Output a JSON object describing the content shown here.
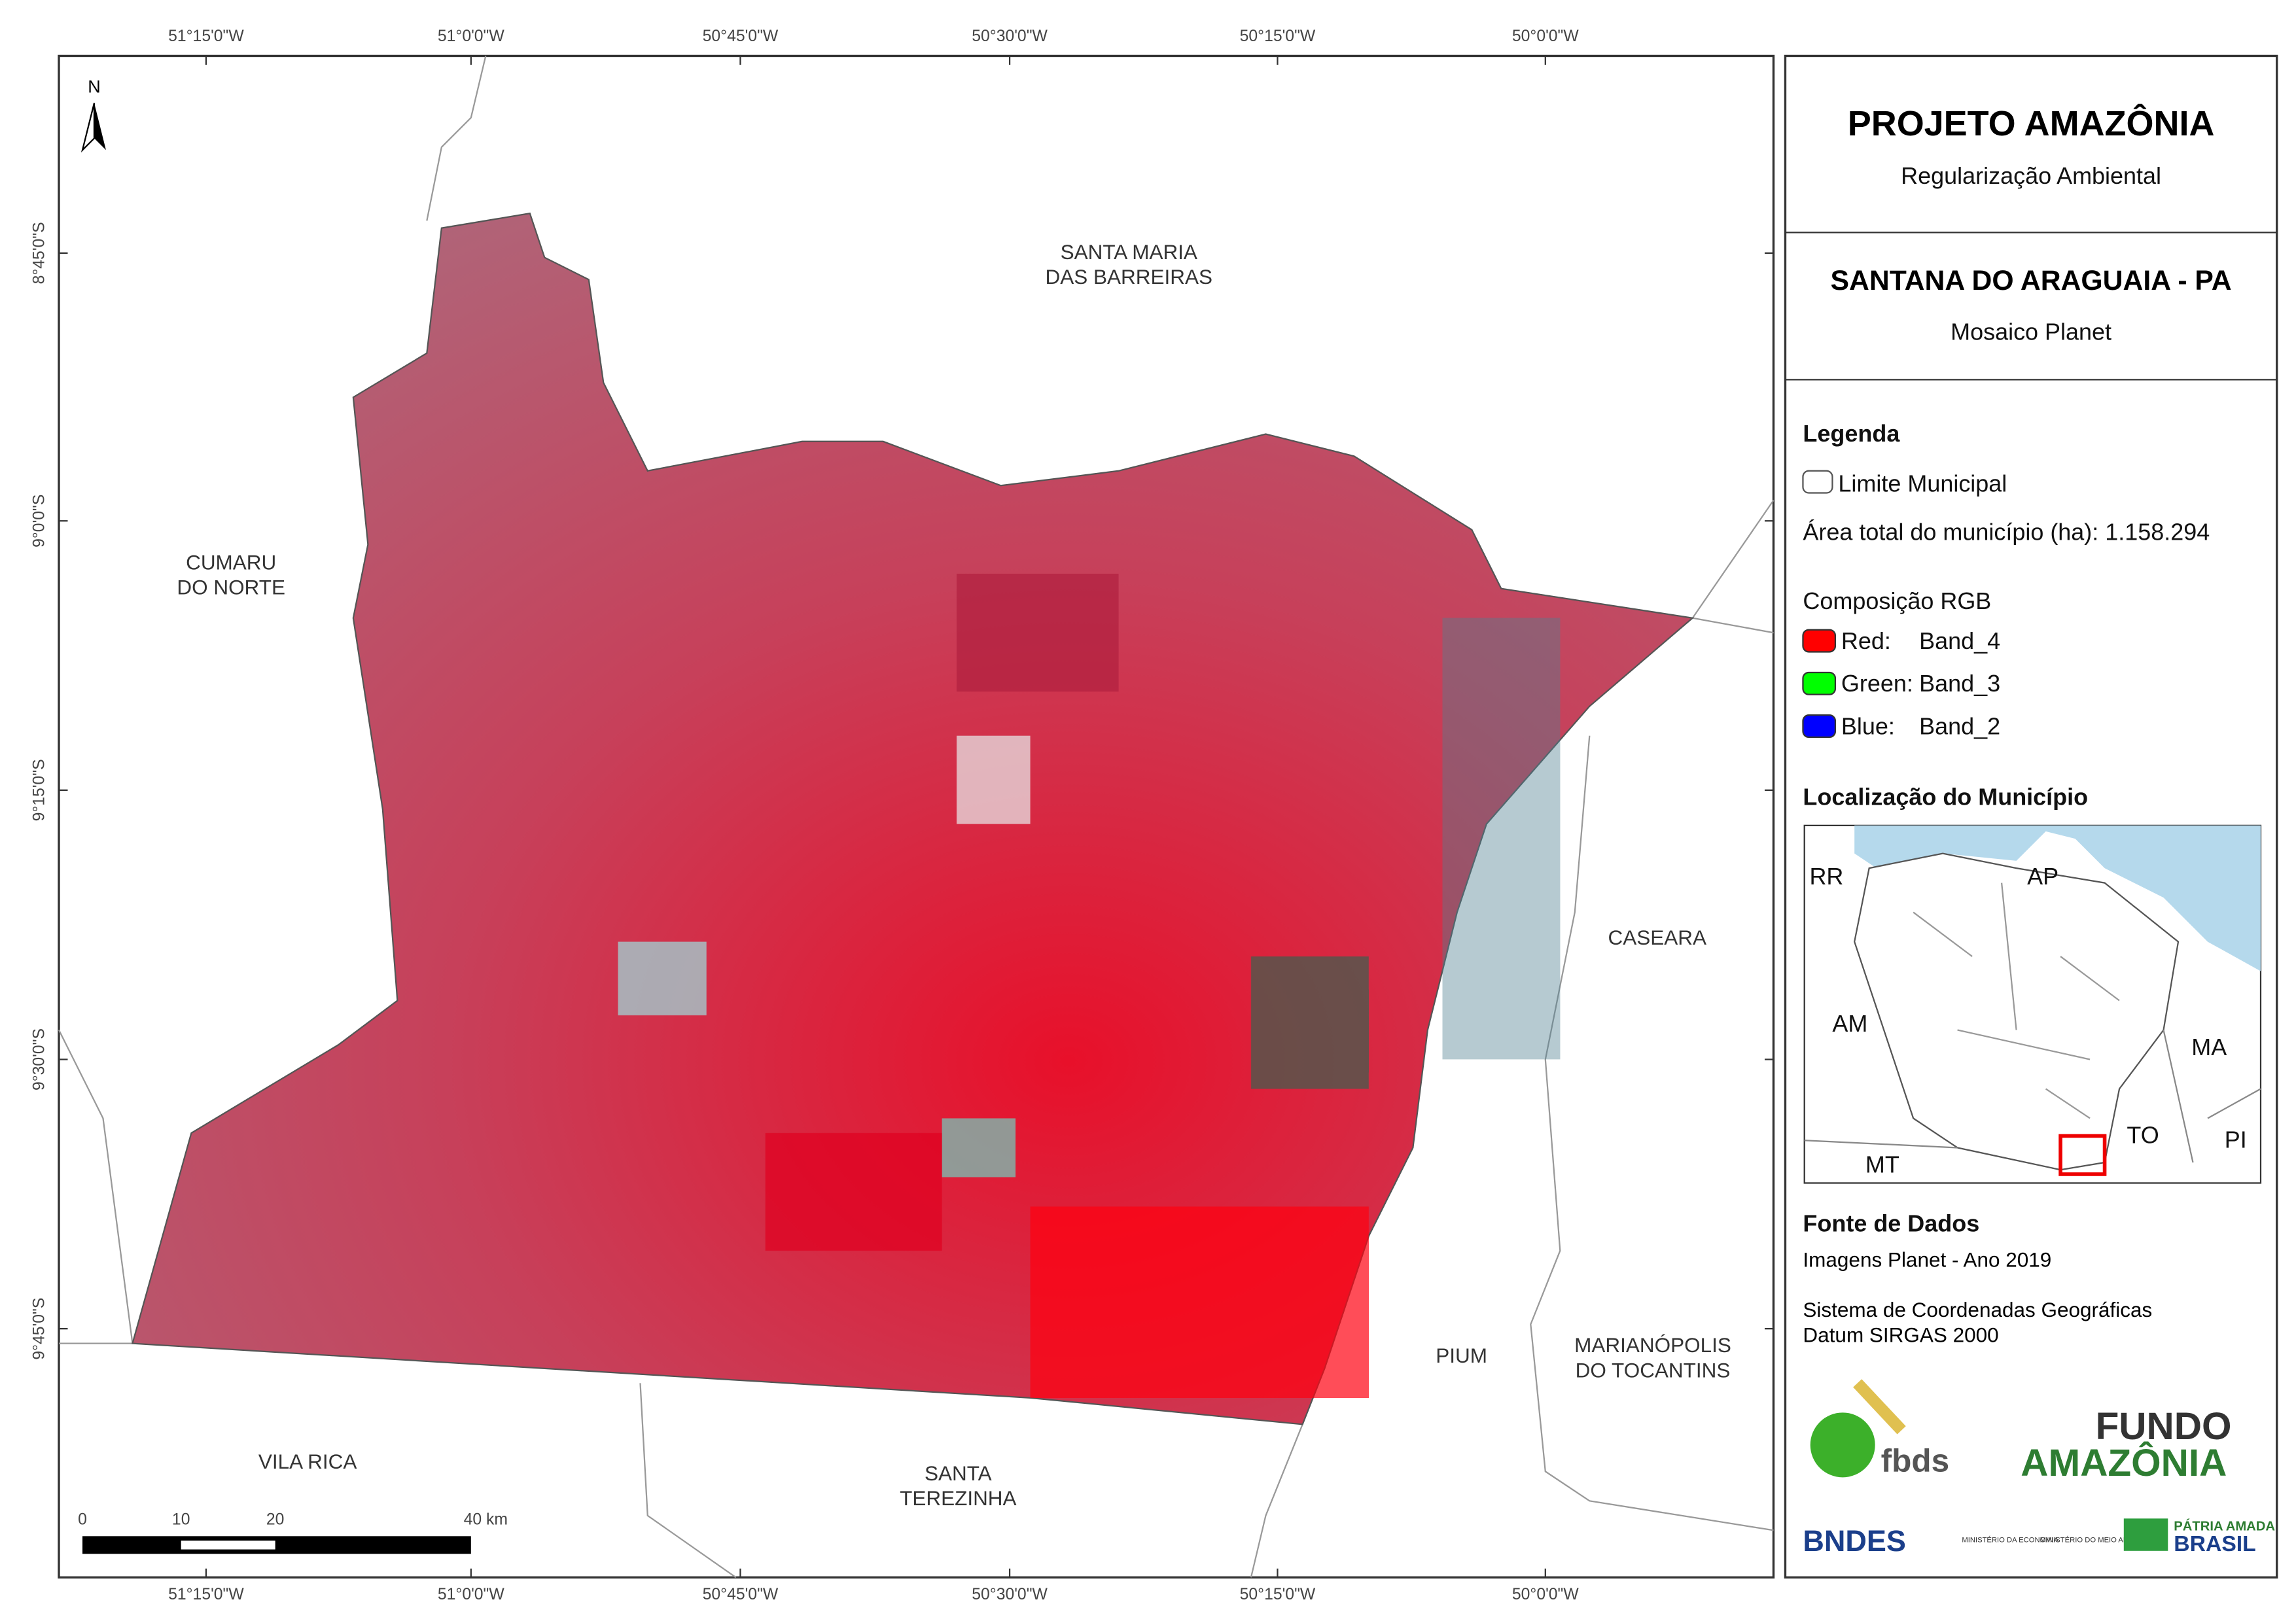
{
  "map": {
    "north": "N",
    "lon_labels": [
      "51°15'0\"W",
      "51°0'0\"W",
      "50°45'0\"W",
      "50°30'0\"W",
      "50°15'0\"W",
      "50°0'0\"W"
    ],
    "lat_labels": [
      "8°45'0\"S",
      "9°0'0\"S",
      "9°15'0\"S",
      "9°30'0\"S",
      "9°45'0\"S"
    ],
    "places": [
      {
        "lines": [
          "SANTA MARIA",
          "DAS BARREIRAS"
        ]
      },
      {
        "lines": [
          "CUMARU",
          "DO NORTE"
        ]
      },
      {
        "lines": [
          "CASEARA"
        ]
      },
      {
        "lines": [
          "PIUM"
        ]
      },
      {
        "lines": [
          "MARIANÓPOLIS",
          "DO TOCANTINS"
        ]
      },
      {
        "lines": [
          "VILA RICA"
        ]
      },
      {
        "lines": [
          "SANTA",
          "TEREZINHA"
        ]
      }
    ],
    "scale_labels": [
      "0",
      "10",
      "20",
      "40 km"
    ]
  },
  "panel": {
    "title": "PROJETO AMAZÔNIA",
    "subtitle": "Regularização Ambiental",
    "municipality": "SANTANA DO ARAGUAIA - PA",
    "mosaic": "Mosaico Planet",
    "legend_title": "Legenda",
    "limit": "Limite Municipal",
    "area": "Área total do município (ha): 1.158.294",
    "rgb_title": "Composição RGB",
    "rgb": [
      {
        "label": "Red:",
        "band": "Band_4"
      },
      {
        "label": "Green:",
        "band": "Band_3"
      },
      {
        "label": "Blue:",
        "band": "Band_2"
      }
    ],
    "location_title": "Localização do Município",
    "states": [
      "RR",
      "AP",
      "AM",
      "MA",
      "TO",
      "PI",
      "MT"
    ],
    "sources_title": "Fonte de Dados",
    "sources": [
      "Imagens Planet - Ano 2019",
      "Sistema de Coordenadas Geográficas",
      "Datum SIRGAS 2000"
    ],
    "logos": [
      "fbds",
      "FUNDO",
      "AMAZÔNIA",
      "BNDES",
      "MINISTÉRIO DA ECONOMIA",
      "MINISTÉRIO DO MEIO AMBIENTE",
      "PÁTRIA AMADA",
      "BRASIL"
    ]
  }
}
